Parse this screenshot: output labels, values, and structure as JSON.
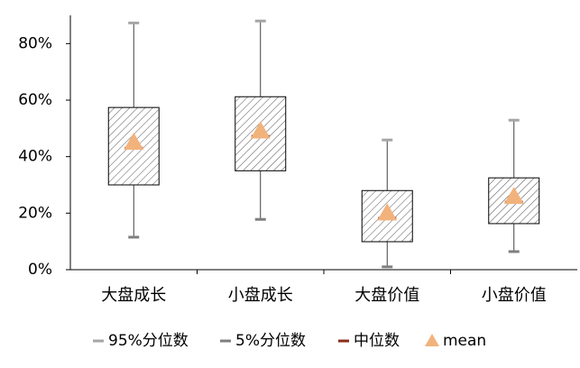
{
  "chart_data": {
    "type": "box",
    "categories": [
      "大盘成长",
      "小盘成长",
      "大盘价值",
      "小盘价值"
    ],
    "q1": [
      30.0,
      35.0,
      9.9,
      16.3
    ],
    "q3": [
      57.4,
      61.2,
      28.0,
      32.5
    ],
    "series": [
      {
        "name": "95%分位数",
        "color": "#a6a6a6",
        "values": [
          87.3,
          88.0,
          45.9,
          52.9
        ]
      },
      {
        "name": "5%分位数",
        "color": "#7f7f7f",
        "values": [
          11.5,
          17.8,
          1.0,
          6.4
        ]
      },
      {
        "name": "中位数",
        "color": "#8b2e1a",
        "values": [
          43.0,
          47.2,
          18.2,
          23.9
        ]
      },
      {
        "name": "mean",
        "color": "#f2b27c",
        "values": [
          45.0,
          49.0,
          20.0,
          25.8
        ]
      }
    ],
    "ylim": [
      0,
      90
    ],
    "yticks": [
      {
        "value": 0,
        "label": "0%"
      },
      {
        "value": 20,
        "label": "20%"
      },
      {
        "value": 40,
        "label": "40%"
      },
      {
        "value": 60,
        "label": "60%"
      },
      {
        "value": 80,
        "label": "80%"
      }
    ],
    "legend": "bottom"
  }
}
